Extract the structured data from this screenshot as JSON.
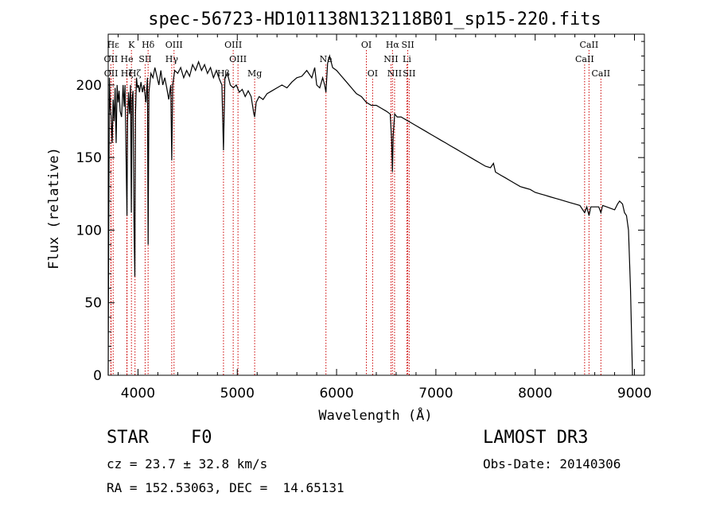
{
  "chart_data": {
    "type": "line",
    "title": "spec-56723-HD101138N132118B01_sp15-220.fits",
    "xlabel": "Wavelength (Å)",
    "ylabel": "Flux (relative)",
    "xlim": [
      3700,
      9100
    ],
    "ylim": [
      0,
      235
    ],
    "x_ticks": [
      4000,
      5000,
      6000,
      7000,
      8000,
      9000
    ],
    "y_ticks": [
      0,
      50,
      100,
      150,
      200
    ],
    "series": [
      {
        "name": "flux",
        "points": [
          [
            3700,
            0
          ],
          [
            3705,
            92
          ],
          [
            3712,
            205
          ],
          [
            3720,
            185
          ],
          [
            3730,
            178
          ],
          [
            3740,
            160
          ],
          [
            3750,
            190
          ],
          [
            3760,
            175
          ],
          [
            3770,
            198
          ],
          [
            3780,
            160
          ],
          [
            3790,
            200
          ],
          [
            3800,
            188
          ],
          [
            3810,
            196
          ],
          [
            3820,
            182
          ],
          [
            3835,
            178
          ],
          [
            3850,
            200
          ],
          [
            3860,
            185
          ],
          [
            3870,
            200
          ],
          [
            3880,
            150
          ],
          [
            3889,
            110
          ],
          [
            3895,
            175
          ],
          [
            3905,
            195
          ],
          [
            3915,
            180
          ],
          [
            3925,
            200
          ],
          [
            3933,
            112
          ],
          [
            3940,
            190
          ],
          [
            3950,
            196
          ],
          [
            3960,
            102
          ],
          [
            3968,
            68
          ],
          [
            3975,
            180
          ],
          [
            3985,
            205
          ],
          [
            3995,
            198
          ],
          [
            4005,
            200
          ],
          [
            4015,
            195
          ],
          [
            4030,
            202
          ],
          [
            4045,
            195
          ],
          [
            4060,
            200
          ],
          [
            4080,
            188
          ],
          [
            4095,
            205
          ],
          [
            4102,
            90
          ],
          [
            4110,
            195
          ],
          [
            4130,
            208
          ],
          [
            4150,
            205
          ],
          [
            4170,
            212
          ],
          [
            4190,
            206
          ],
          [
            4210,
            200
          ],
          [
            4230,
            210
          ],
          [
            4250,
            200
          ],
          [
            4270,
            205
          ],
          [
            4290,
            198
          ],
          [
            4310,
            190
          ],
          [
            4330,
            200
          ],
          [
            4340,
            148
          ],
          [
            4350,
            200
          ],
          [
            4370,
            210
          ],
          [
            4400,
            208
          ],
          [
            4430,
            212
          ],
          [
            4460,
            205
          ],
          [
            4490,
            210
          ],
          [
            4520,
            206
          ],
          [
            4550,
            214
          ],
          [
            4580,
            210
          ],
          [
            4610,
            216
          ],
          [
            4640,
            210
          ],
          [
            4670,
            214
          ],
          [
            4700,
            208
          ],
          [
            4730,
            212
          ],
          [
            4760,
            205
          ],
          [
            4790,
            210
          ],
          [
            4820,
            204
          ],
          [
            4845,
            200
          ],
          [
            4861,
            155
          ],
          [
            4875,
            205
          ],
          [
            4900,
            208
          ],
          [
            4930,
            200
          ],
          [
            4960,
            198
          ],
          [
            4990,
            200
          ],
          [
            5020,
            195
          ],
          [
            5050,
            197
          ],
          [
            5080,
            192
          ],
          [
            5110,
            196
          ],
          [
            5140,
            192
          ],
          [
            5167,
            180
          ],
          [
            5175,
            178
          ],
          [
            5190,
            188
          ],
          [
            5220,
            192
          ],
          [
            5260,
            190
          ],
          [
            5300,
            194
          ],
          [
            5350,
            196
          ],
          [
            5400,
            198
          ],
          [
            5450,
            200
          ],
          [
            5500,
            198
          ],
          [
            5550,
            202
          ],
          [
            5600,
            205
          ],
          [
            5650,
            206
          ],
          [
            5700,
            210
          ],
          [
            5750,
            205
          ],
          [
            5780,
            212
          ],
          [
            5800,
            200
          ],
          [
            5830,
            198
          ],
          [
            5860,
            205
          ],
          [
            5880,
            200
          ],
          [
            5893,
            195
          ],
          [
            5910,
            215
          ],
          [
            5930,
            220
          ],
          [
            5960,
            212
          ],
          [
            6000,
            210
          ],
          [
            6050,
            206
          ],
          [
            6100,
            202
          ],
          [
            6150,
            198
          ],
          [
            6200,
            194
          ],
          [
            6250,
            192
          ],
          [
            6300,
            188
          ],
          [
            6350,
            186
          ],
          [
            6400,
            186
          ],
          [
            6450,
            184
          ],
          [
            6500,
            182
          ],
          [
            6540,
            180
          ],
          [
            6555,
            162
          ],
          [
            6563,
            140
          ],
          [
            6570,
            165
          ],
          [
            6585,
            180
          ],
          [
            6610,
            178
          ],
          [
            6650,
            178
          ],
          [
            6700,
            176
          ],
          [
            6750,
            174
          ],
          [
            6800,
            172
          ],
          [
            6850,
            170
          ],
          [
            6900,
            168
          ],
          [
            6950,
            166
          ],
          [
            7000,
            164
          ],
          [
            7050,
            162
          ],
          [
            7100,
            160
          ],
          [
            7150,
            158
          ],
          [
            7200,
            156
          ],
          [
            7250,
            154
          ],
          [
            7300,
            152
          ],
          [
            7350,
            150
          ],
          [
            7400,
            148
          ],
          [
            7450,
            146
          ],
          [
            7500,
            144
          ],
          [
            7550,
            143
          ],
          [
            7580,
            146
          ],
          [
            7600,
            140
          ],
          [
            7650,
            138
          ],
          [
            7700,
            136
          ],
          [
            7750,
            134
          ],
          [
            7800,
            132
          ],
          [
            7850,
            130
          ],
          [
            7900,
            129
          ],
          [
            7950,
            128
          ],
          [
            8000,
            126
          ],
          [
            8050,
            125
          ],
          [
            8100,
            124
          ],
          [
            8150,
            123
          ],
          [
            8200,
            122
          ],
          [
            8250,
            121
          ],
          [
            8300,
            120
          ],
          [
            8350,
            119
          ],
          [
            8400,
            118
          ],
          [
            8450,
            117
          ],
          [
            8498,
            112
          ],
          [
            8520,
            116
          ],
          [
            8542,
            110
          ],
          [
            8560,
            116
          ],
          [
            8600,
            116
          ],
          [
            8640,
            116
          ],
          [
            8662,
            112
          ],
          [
            8680,
            117
          ],
          [
            8720,
            116
          ],
          [
            8760,
            115
          ],
          [
            8800,
            114
          ],
          [
            8830,
            118
          ],
          [
            8850,
            120
          ],
          [
            8880,
            118
          ],
          [
            8900,
            112
          ],
          [
            8920,
            110
          ],
          [
            8940,
            100
          ],
          [
            8960,
            60
          ],
          [
            8980,
            0
          ]
        ]
      }
    ],
    "spectral_lines": [
      {
        "label": "Hε",
        "wavelength": 3750,
        "row": 0
      },
      {
        "label": "K",
        "wavelength": 3934,
        "row": 0
      },
      {
        "label": "Hδ",
        "wavelength": 4102,
        "row": 0
      },
      {
        "label": "OIII",
        "wavelength": 4363,
        "row": 0
      },
      {
        "label": "OIII",
        "wavelength": 4959,
        "row": 0
      },
      {
        "label": "OI",
        "wavelength": 6300,
        "row": 0
      },
      {
        "label": "Hα",
        "wavelength": 6563,
        "row": 0
      },
      {
        "label": "SII",
        "wavelength": 6717,
        "row": 0
      },
      {
        "label": "CaII",
        "wavelength": 8542,
        "row": 0
      },
      {
        "label": "OII",
        "wavelength": 3727,
        "row": 1
      },
      {
        "label": "He",
        "wavelength": 3889,
        "row": 1
      },
      {
        "label": "SII",
        "wavelength": 4072,
        "row": 1
      },
      {
        "label": "Hγ",
        "wavelength": 4340,
        "row": 1
      },
      {
        "label": "OIII",
        "wavelength": 5007,
        "row": 1
      },
      {
        "label": "Na",
        "wavelength": 5893,
        "row": 1
      },
      {
        "label": "NII",
        "wavelength": 6548,
        "row": 1
      },
      {
        "label": "Li",
        "wavelength": 6708,
        "row": 1
      },
      {
        "label": "CaII",
        "wavelength": 8498,
        "row": 1
      },
      {
        "label": "OII",
        "wavelength": 3729,
        "row": 2
      },
      {
        "label": "Hζ",
        "wavelength": 3889,
        "row": 2
      },
      {
        "label": "Hζ",
        "wavelength": 3970,
        "row": 2
      },
      {
        "label": "Hβ",
        "wavelength": 4861,
        "row": 2
      },
      {
        "label": "Mg",
        "wavelength": 5175,
        "row": 2
      },
      {
        "label": "OI",
        "wavelength": 6363,
        "row": 2
      },
      {
        "label": "NII",
        "wavelength": 6584,
        "row": 2
      },
      {
        "label": "SII",
        "wavelength": 6731,
        "row": 2
      },
      {
        "label": "CaII",
        "wavelength": 8662,
        "row": 2
      }
    ],
    "colors": {
      "spectrum": "#000000",
      "line_marker": "#cc0000",
      "axes": "#000000"
    }
  },
  "info": {
    "object_class": "STAR",
    "subclass": "F0",
    "survey": "LAMOST DR3",
    "cz": "cz = 23.7 ± 32.8 km/s",
    "obs_date": "Obs-Date: 20140306",
    "coords": "RA = 152.53063, DEC =  14.65131"
  }
}
